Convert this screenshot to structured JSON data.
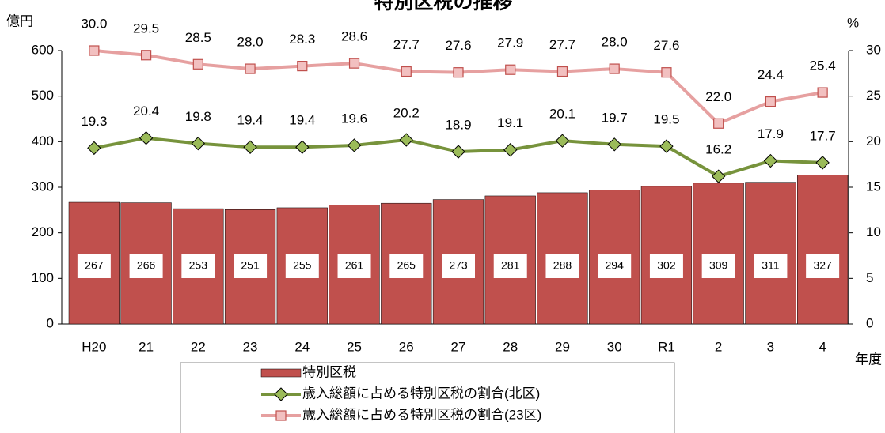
{
  "chart_data": {
    "type": "bar",
    "title": "特別区税の推移",
    "y_label": "億円",
    "y2_label": "%",
    "x_label": "年度",
    "categories": [
      "H20",
      "21",
      "22",
      "23",
      "24",
      "25",
      "26",
      "27",
      "28",
      "29",
      "30",
      "R1",
      "2",
      "3",
      "4"
    ],
    "series": [
      {
        "name": "特別区税",
        "type": "bar",
        "color": "#c0504d",
        "values": [
          267,
          266,
          253,
          251,
          255,
          261,
          265,
          273,
          281,
          288,
          294,
          302,
          309,
          311,
          327
        ]
      },
      {
        "name": "歳入総額に占める特別区税の割合(北区)",
        "type": "line",
        "axis": "y2",
        "marker": "diamond",
        "color": "#77933c",
        "marker_color": "#9bbb59",
        "values": [
          19.3,
          20.4,
          19.8,
          19.4,
          19.4,
          19.6,
          20.2,
          18.9,
          19.1,
          20.1,
          19.7,
          19.5,
          16.2,
          17.9,
          17.7
        ]
      },
      {
        "name": "歳入総額に占める特別区税の割合(23区)",
        "type": "line",
        "axis": "y2",
        "marker": "square",
        "color": "#e6a0a0",
        "marker_color": "#f2c0c0",
        "values": [
          30.0,
          29.5,
          28.5,
          28.0,
          28.3,
          28.6,
          27.7,
          27.6,
          27.9,
          27.7,
          28.0,
          27.6,
          22.0,
          24.4,
          25.4
        ],
        "value_labels": [
          "30.0",
          "29.5",
          "28.5",
          "28.0",
          "28.3",
          "28.6",
          "27.7",
          "27.6",
          "27.9",
          "27.7",
          "28.0",
          "27.6",
          "22.0",
          "24.4",
          "25.4"
        ]
      }
    ],
    "ylim": [
      0,
      600
    ],
    "yticks": [
      0,
      100,
      200,
      300,
      400,
      500,
      600
    ],
    "y2lim": [
      0,
      30
    ],
    "y2ticks": [
      0,
      5,
      10,
      15,
      20,
      25,
      30
    ],
    "legend": "bottom"
  }
}
